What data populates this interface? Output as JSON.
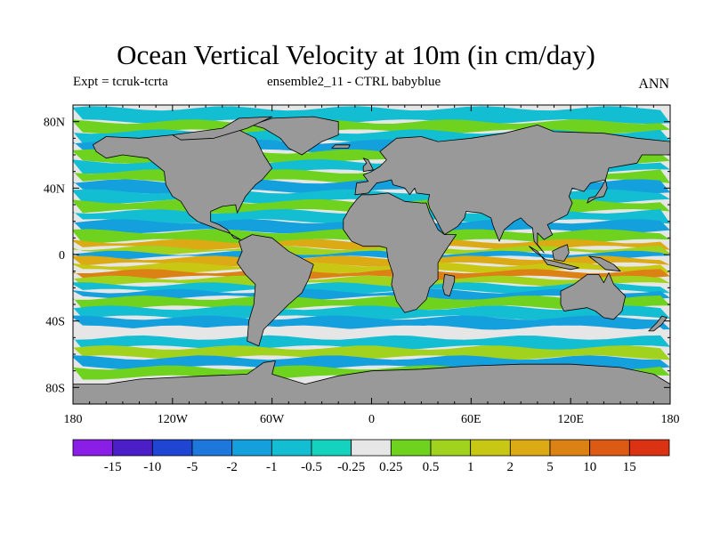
{
  "chart_data": {
    "type": "heatmap",
    "title": "Ocean Vertical Velocity at 10m (in cm/day)",
    "subtitle_left": "Expt = tcruk-tcrta",
    "subtitle_center": "ensemble2_11 - CTRL babyblue",
    "subtitle_right": "ANN",
    "xticks": [
      -180,
      -120,
      -60,
      0,
      60,
      120,
      180
    ],
    "xtick_labels": [
      "180",
      "120W",
      "60W",
      "0",
      "60E",
      "120E",
      "180"
    ],
    "yticks": [
      80,
      40,
      0,
      -40,
      -80
    ],
    "ytick_labels": [
      "80N",
      "40N",
      "0",
      "40S",
      "80S"
    ],
    "xlim": [
      -180,
      180
    ],
    "ylim": [
      -90,
      90
    ],
    "colorbar": {
      "levels": [
        -15,
        -10,
        -5,
        -2,
        -1,
        -0.5,
        -0.25,
        0.25,
        0.5,
        1,
        2,
        5,
        10,
        15
      ],
      "level_labels": [
        "-15",
        "-10",
        "-5",
        "-2",
        "-1",
        "-0.5",
        "-0.25",
        "0.25",
        "0.5",
        "1",
        "2",
        "5",
        "10",
        "15"
      ],
      "colors": [
        "#8a1ee6",
        "#4b1ec8",
        "#1e46d2",
        "#1e78dc",
        "#14a0dc",
        "#14bed2",
        "#14d2be",
        "#e6e6e6",
        "#6ed21e",
        "#a0d21e",
        "#c8c814",
        "#dcaa14",
        "#dc8214",
        "#dc5a14",
        "#dc3214"
      ]
    },
    "land_color": "#999999"
  }
}
